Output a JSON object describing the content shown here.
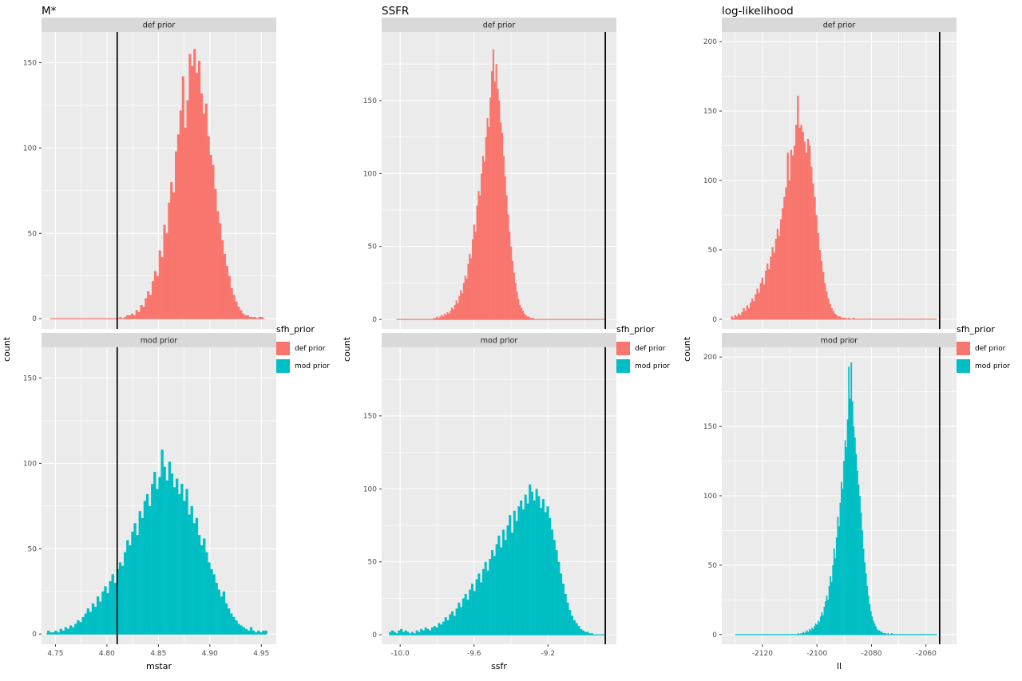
{
  "figure_ylabel": "count",
  "colors": {
    "panel_bg": "#EBEBEB",
    "strip_bg": "#D9D9D9",
    "strip_text": "#1A1A1A",
    "grid": "#FFFFFF",
    "axis_text": "#4D4D4D",
    "tick_mark": "#333333",
    "vline": "#000000",
    "def_prior": "#F8766D",
    "mod_prior": "#00BFC4"
  },
  "chart_data": [
    {
      "type": "bar",
      "title": "M*",
      "xlabel": "mstar",
      "ylabel": "count",
      "legend": {
        "title": "sfh_prior",
        "entries": [
          {
            "label": "def prior",
            "color": "#F8766D"
          },
          {
            "label": "mod prior",
            "color": "#00BFC4"
          }
        ]
      },
      "x_domain": [
        4.7365,
        4.9645
      ],
      "x_ticks": [
        4.75,
        4.8,
        4.85,
        4.9,
        4.95
      ],
      "x_tick_labels": [
        "4.75",
        "4.80",
        "4.85",
        "4.90",
        "4.95"
      ],
      "y_domain": [
        -6,
        168
      ],
      "y_ticks": [
        0,
        50,
        100,
        150
      ],
      "vline": 4.81,
      "panels": [
        {
          "facet": "def prior",
          "color": "#F8766D",
          "x0": 4.812,
          "binwidth": 0.00225,
          "baseline": [
            4.745,
            4.953
          ],
          "heights": [
            1,
            0,
            1,
            2,
            2,
            3,
            2,
            5,
            4,
            8,
            7,
            12,
            16,
            14,
            22,
            28,
            25,
            40,
            36,
            55,
            50,
            68,
            80,
            74,
            98,
            108,
            122,
            142,
            112,
            128,
            155,
            148,
            158,
            144,
            151,
            132,
            120,
            126,
            107,
            96,
            90,
            76,
            63,
            56,
            46,
            38,
            31,
            25,
            18,
            14,
            10,
            7,
            5,
            3,
            2,
            2,
            1,
            1,
            1,
            0,
            1,
            1
          ]
        },
        {
          "facet": "mod prior",
          "color": "#00BFC4",
          "x0": 4.742,
          "binwidth": 0.0024,
          "baseline": [
            4.741,
            4.955
          ],
          "heights": [
            2,
            1,
            1,
            2,
            1,
            3,
            2,
            4,
            3,
            5,
            4,
            6,
            8,
            7,
            10,
            12,
            15,
            13,
            18,
            16,
            22,
            19,
            25,
            28,
            24,
            31,
            35,
            30,
            38,
            42,
            40,
            48,
            55,
            52,
            60,
            65,
            58,
            72,
            68,
            78,
            82,
            75,
            88,
            95,
            85,
            92,
            108,
            98,
            90,
            101,
            94,
            86,
            91,
            82,
            88,
            78,
            85,
            70,
            75,
            65,
            68,
            58,
            52,
            56,
            48,
            42,
            38,
            35,
            30,
            26,
            22,
            25,
            18,
            15,
            12,
            10,
            8,
            6,
            5,
            4,
            3,
            2,
            4,
            2,
            1,
            2,
            1,
            2,
            2
          ]
        }
      ]
    },
    {
      "type": "bar",
      "title": "SSFR",
      "xlabel": "ssfr",
      "ylabel": "count",
      "legend": {
        "title": "sfh_prior",
        "entries": [
          {
            "label": "def prior",
            "color": "#F8766D"
          },
          {
            "label": "mod prior",
            "color": "#00BFC4"
          }
        ]
      },
      "x_domain": [
        -10.1,
        -8.83
      ],
      "x_ticks": [
        -10.0,
        -9.6,
        -9.2
      ],
      "x_tick_labels": [
        "-10.0",
        "-9.6",
        "-9.2"
      ],
      "y_domain": [
        -6.5,
        197
      ],
      "y_ticks": [
        0,
        50,
        100,
        150
      ],
      "vline": -8.89,
      "panels": [
        {
          "facet": "def prior",
          "color": "#F8766D",
          "x0": -9.82,
          "binwidth": 0.008,
          "baseline": [
            -10.02,
            -8.893
          ],
          "heights": [
            1,
            1,
            2,
            1,
            2,
            3,
            2,
            4,
            3,
            5,
            4,
            6,
            8,
            7,
            10,
            13,
            11,
            16,
            20,
            18,
            25,
            30,
            28,
            38,
            45,
            42,
            55,
            65,
            60,
            78,
            88,
            85,
            100,
            112,
            108,
            125,
            138,
            132,
            152,
            170,
            185,
            163,
            175,
            158,
            150,
            135,
            128,
            112,
            98,
            85,
            72,
            60,
            50,
            40,
            32,
            25,
            19,
            14,
            10,
            8,
            6,
            4,
            3,
            2,
            2,
            1,
            1,
            1
          ]
        },
        {
          "facet": "mod prior",
          "color": "#00BFC4",
          "x0": -10.06,
          "binwidth": 0.012,
          "baseline": [
            -10.06,
            -8.893
          ],
          "heights": [
            2,
            3,
            2,
            1,
            3,
            4,
            2,
            3,
            2,
            1,
            2,
            1,
            3,
            2,
            4,
            3,
            5,
            4,
            3,
            5,
            6,
            5,
            8,
            7,
            9,
            12,
            10,
            14,
            16,
            13,
            18,
            22,
            19,
            25,
            28,
            24,
            31,
            35,
            30,
            38,
            42,
            36,
            45,
            50,
            44,
            52,
            58,
            54,
            62,
            68,
            60,
            72,
            65,
            75,
            82,
            70,
            85,
            78,
            88,
            92,
            86,
            96,
            90,
            103,
            98,
            92,
            100,
            95,
            87,
            93,
            84,
            88,
            80,
            72,
            65,
            58,
            50,
            42,
            35,
            28,
            22,
            17,
            13,
            10,
            8,
            6,
            4,
            3,
            2,
            2,
            1,
            1
          ]
        }
      ]
    },
    {
      "type": "bar",
      "title": "log-likelihood",
      "xlabel": "ll",
      "ylabel": "count",
      "legend": {
        "title": "sfh_prior",
        "entries": [
          {
            "label": "def prior",
            "color": "#F8766D"
          },
          {
            "label": "mod prior",
            "color": "#00BFC4"
          }
        ]
      },
      "x_domain": [
        -2134.9,
        -2048.8
      ],
      "x_ticks": [
        -2120,
        -2100,
        -2080,
        -2060
      ],
      "x_tick_labels": [
        "-2120",
        "-2100",
        "-2080",
        "-2060"
      ],
      "y_domain": [
        -7,
        207
      ],
      "y_ticks": [
        0,
        50,
        100,
        150,
        200
      ],
      "vline": -2055,
      "panels": [
        {
          "facet": "def prior",
          "color": "#F8766D",
          "x0": -2131.5,
          "binwidth": 0.62,
          "baseline": [
            -2131.5,
            -2056
          ],
          "heights": [
            2,
            1,
            3,
            2,
            4,
            3,
            5,
            8,
            6,
            10,
            8,
            12,
            15,
            13,
            18,
            22,
            19,
            26,
            30,
            25,
            35,
            40,
            36,
            45,
            52,
            48,
            58,
            65,
            60,
            72,
            80,
            88,
            95,
            120,
            100,
            122,
            118,
            125,
            140,
            161,
            138,
            140,
            135,
            128,
            120,
            130,
            125,
            110,
            98,
            88,
            75,
            62,
            50,
            42,
            34,
            26,
            20,
            15,
            11,
            8,
            6,
            4,
            3,
            2,
            2,
            1,
            1,
            1,
            0,
            1,
            0,
            0,
            1
          ]
        },
        {
          "facet": "mod prior",
          "color": "#00BFC4",
          "x0": -2107,
          "binwidth": 0.45,
          "baseline": [
            -2130,
            -2056
          ],
          "heights": [
            1,
            0,
            1,
            1,
            2,
            1,
            2,
            3,
            2,
            4,
            3,
            5,
            4,
            6,
            8,
            7,
            10,
            9,
            13,
            16,
            14,
            20,
            24,
            28,
            25,
            35,
            42,
            38,
            50,
            62,
            55,
            70,
            85,
            78,
            95,
            110,
            105,
            125,
            140,
            135,
            155,
            193,
            170,
            196,
            168,
            150,
            142,
            130,
            118,
            108,
            100,
            88,
            75,
            62,
            52,
            44,
            35,
            28,
            22,
            17,
            13,
            10,
            8,
            6,
            4,
            3,
            3,
            2,
            2,
            1,
            1,
            1,
            0,
            1,
            0,
            0,
            1,
            0
          ]
        }
      ]
    }
  ]
}
